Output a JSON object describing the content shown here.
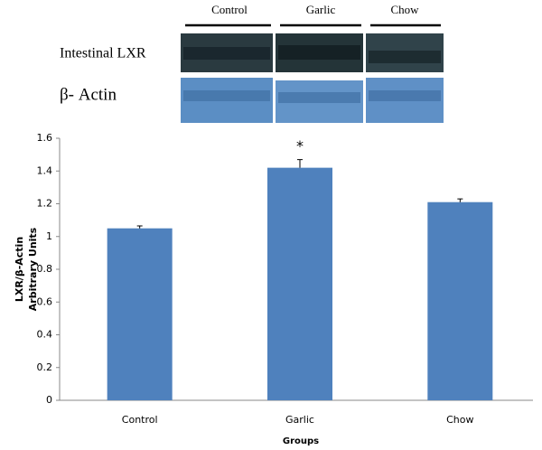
{
  "blot": {
    "lanes": [
      "Control",
      "Garlic",
      "Chow"
    ],
    "rows": [
      "Intestinal LXR",
      "β- Actin"
    ]
  },
  "chart_data": {
    "type": "bar",
    "categories": [
      "Control",
      "Garlic",
      "Chow"
    ],
    "values": [
      1.05,
      1.42,
      1.21
    ],
    "errors": [
      0.015,
      0.05,
      0.02
    ],
    "color": "#4f81bd",
    "ylim": [
      0,
      1.6
    ],
    "yticks": [
      0,
      0.2,
      0.4,
      0.6,
      0.8,
      1,
      1.2,
      1.4,
      1.6
    ],
    "y_label": [
      "LXR/β-Actin",
      "Arbitrary Units"
    ],
    "x_label": "Groups",
    "annotations": [
      {
        "text": "*",
        "category": "Garlic"
      }
    ],
    "grid": false
  }
}
